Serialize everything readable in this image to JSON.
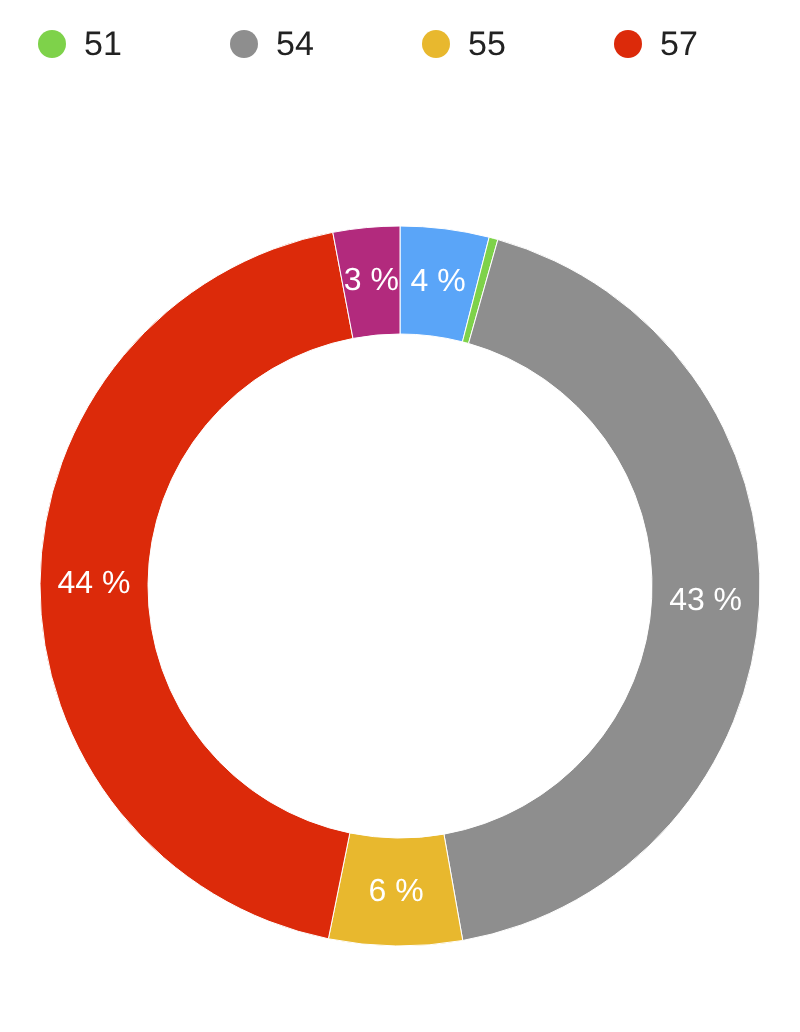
{
  "chart_data": {
    "type": "donut",
    "categories": [
      null,
      "51",
      "54",
      "55",
      "57",
      null
    ],
    "values": [
      4,
      0.4,
      43,
      6,
      44,
      3
    ],
    "colors": [
      "#5aa5f8",
      "#7ed24a",
      "#8e8e8e",
      "#e8b82e",
      "#dc2a0a",
      "#b22a7d"
    ],
    "value_labels": [
      "4 %",
      null,
      "43 %",
      "6 %",
      "44 %",
      "3 %"
    ],
    "legend": "top"
  }
}
